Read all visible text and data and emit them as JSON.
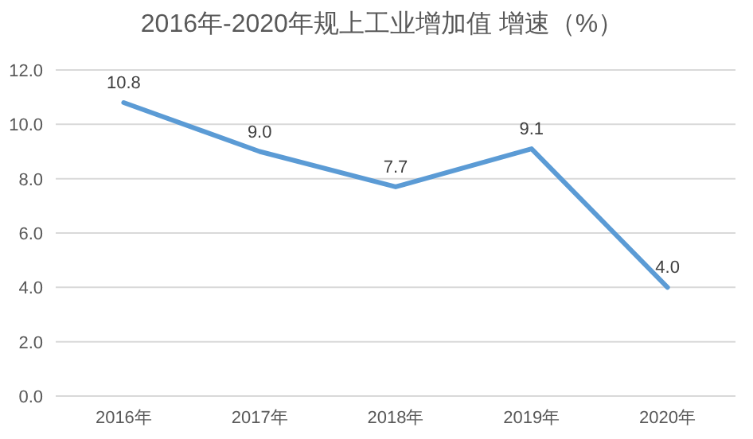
{
  "chart_data": {
    "type": "line",
    "title": "2016年-2020年规上工业增加值 增速（%）",
    "categories": [
      "2016年",
      "2017年",
      "2018年",
      "2019年",
      "2020年"
    ],
    "series": [
      {
        "color": "#5b9bd5",
        "values": [
          10.8,
          9.0,
          7.7,
          9.1,
          4.0
        ],
        "value_labels": [
          "10.8",
          "9.0",
          "7.7",
          "9.1",
          "4.0"
        ]
      }
    ],
    "ylim": [
      0,
      12
    ],
    "yticks": [
      {
        "value": 0,
        "label": "0.0"
      },
      {
        "value": 2,
        "label": "2.0"
      },
      {
        "value": 4,
        "label": "4.0"
      },
      {
        "value": 6,
        "label": "6.0"
      },
      {
        "value": 8,
        "label": "8.0"
      },
      {
        "value": 10,
        "label": "10.0"
      },
      {
        "value": 12,
        "label": "12.0"
      }
    ],
    "grid": "y",
    "marker": "none",
    "line_style": "solid"
  }
}
